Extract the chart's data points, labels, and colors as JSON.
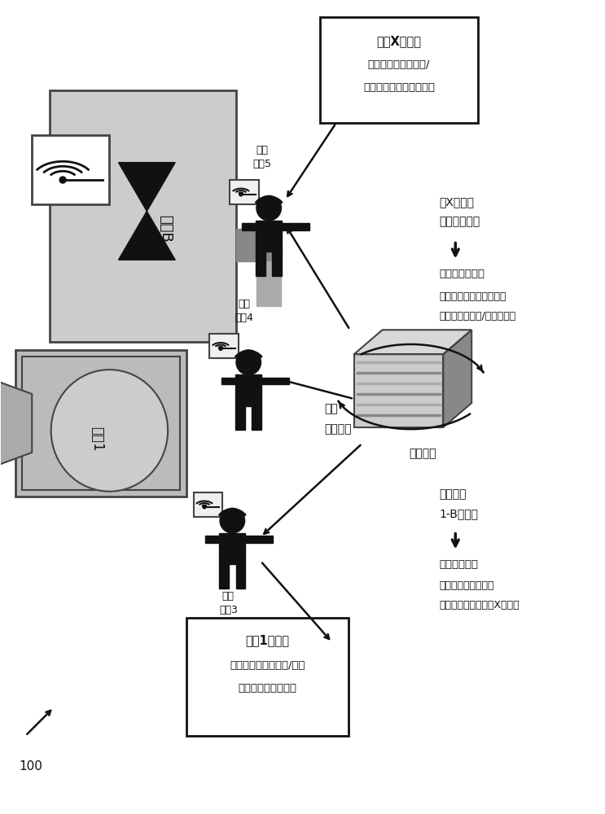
{
  "bg_color": "#ffffff",
  "fig_width": 7.43,
  "fig_height": 10.0,
  "box_top_title": "任务X工作包",
  "box_top_line2": "（例如，程序、工具/",
  "box_top_line3": "部件信息、支持文档等）",
  "box_bot_title": "任务1工作包",
  "box_bot_line2": "（例如，程序、工具/部件",
  "box_bot_line3": "信息、支持文档等）",
  "worker3_label_line1": "工人",
  "worker3_label_line2": "装置3",
  "worker4_label_line1": "工人",
  "worker4_label_line2": "装置4",
  "worker5_label_line1": "工人",
  "worker5_label_line2": "装置5",
  "right_top_text1": "对X任务的",
  "right_top_text2": "任务评价分析",
  "right_top_arrow_label": "任务值分析结果",
  "right_top_sub1": "（例如，优先级、计划、",
  "right_top_sub2": "工人分配、工具/部件保留）",
  "right_mid_text1": "性能",
  "right_mid_text2": "分析结果",
  "right_bot_text1": "分析设备",
  "right_bot_text2": "1-B的性能",
  "right_bot_arrow_label": "性能分析结果",
  "right_bot_sub1": "（例如，性能度量、",
  "right_bot_sub2": "预测的性能、需要的X任务）",
  "platform_label": "分析平台",
  "device_b_label": "设备B",
  "device_1_label": "设备1",
  "label_100": "100"
}
